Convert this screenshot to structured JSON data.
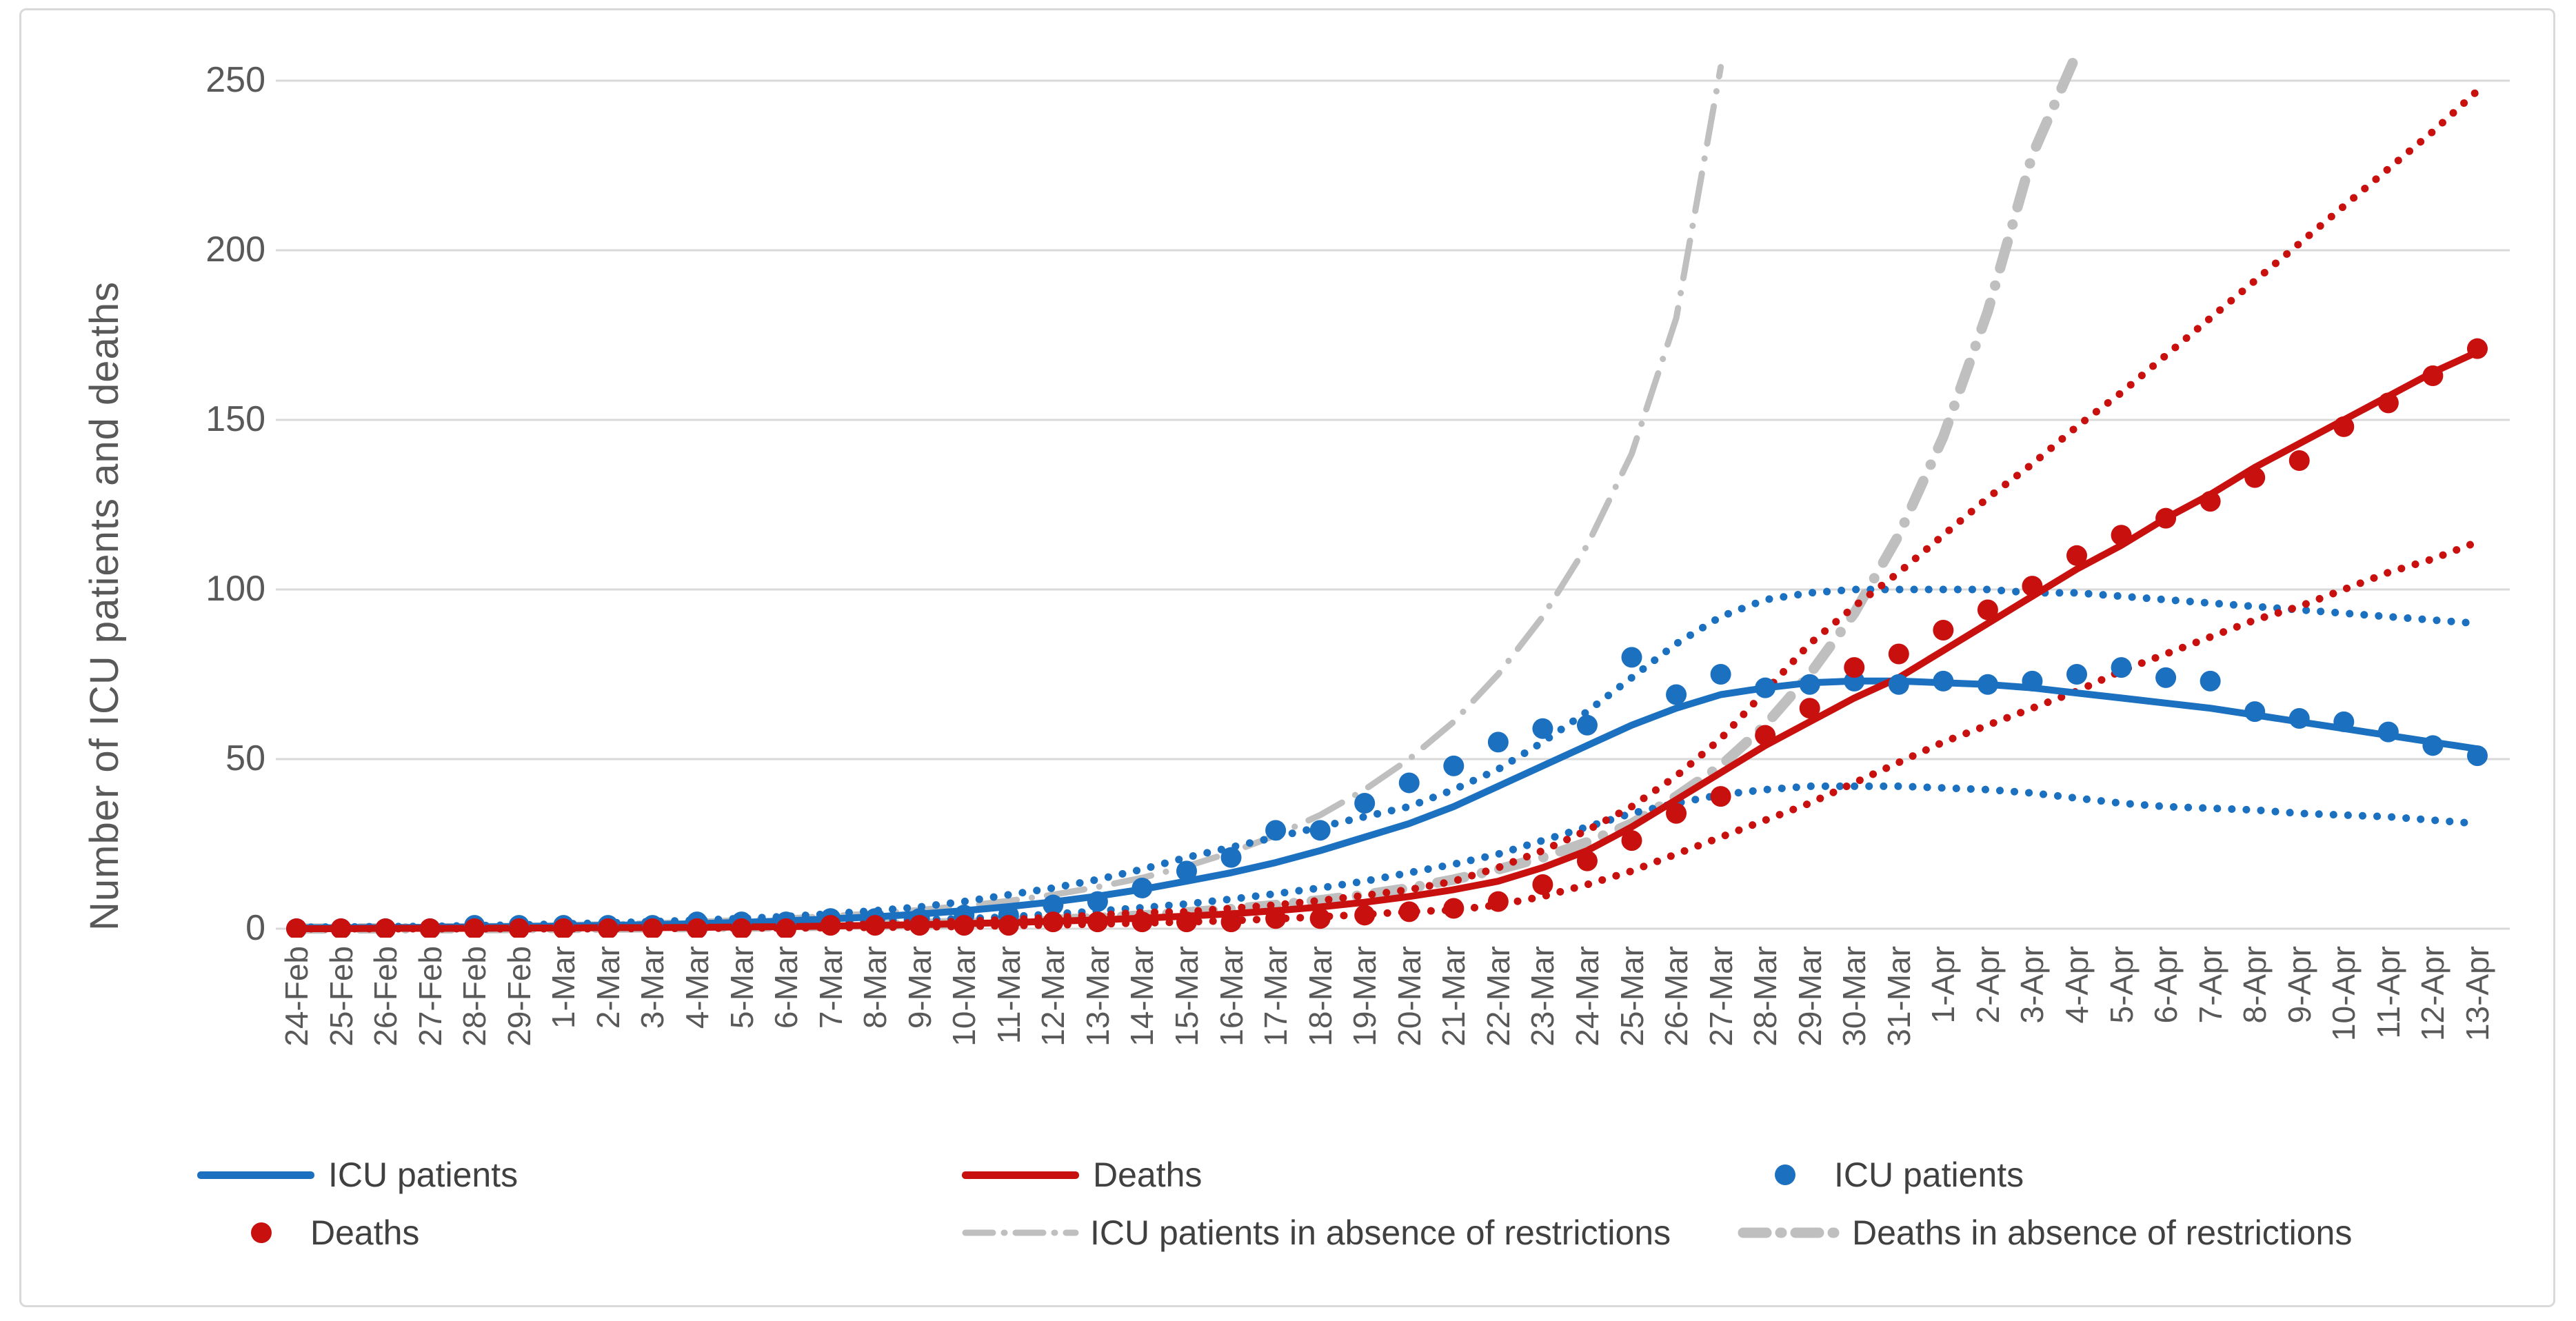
{
  "palette": {
    "blue": "#1B70C0",
    "red": "#C8100E",
    "gray": "#BFBFBF",
    "gridline": "#D9D9D9",
    "axis_text": "#595959",
    "legend_text": "#404040",
    "background": "#FFFFFF"
  },
  "legend": {
    "items": [
      {
        "label": "ICU patients",
        "swatch": "line-blue"
      },
      {
        "label": "Deaths",
        "swatch": "line-red"
      },
      {
        "label": "ICU patients",
        "swatch": "dot-blue"
      },
      {
        "label": "Deaths",
        "swatch": "dot-red"
      },
      {
        "label": "ICU patients in absence of restrictions",
        "swatch": "dashdot-thin"
      },
      {
        "label": "Deaths in absence of restrictions",
        "swatch": "dashdot-thick"
      }
    ]
  },
  "chart_data": {
    "type": "line",
    "title": "",
    "xlabel": "",
    "ylabel": "Number of ICU patients and deaths",
    "ylim": [
      0,
      250
    ],
    "y_ticks": [
      0,
      50,
      100,
      150,
      200,
      250
    ],
    "grid": "horizontal",
    "legend_position": "bottom",
    "x": [
      "24-Feb",
      "25-Feb",
      "26-Feb",
      "27-Feb",
      "28-Feb",
      "29-Feb",
      "1-Mar",
      "2-Mar",
      "3-Mar",
      "4-Mar",
      "5-Mar",
      "6-Mar",
      "7-Mar",
      "8-Mar",
      "9-Mar",
      "10-Mar",
      "11-Mar",
      "12-Mar",
      "13-Mar",
      "14-Mar",
      "15-Mar",
      "16-Mar",
      "17-Mar",
      "18-Mar",
      "19-Mar",
      "20-Mar",
      "21-Mar",
      "22-Mar",
      "23-Mar",
      "24-Mar",
      "25-Mar",
      "26-Mar",
      "27-Mar",
      "28-Mar",
      "29-Mar",
      "30-Mar",
      "31-Mar",
      "1-Apr",
      "2-Apr",
      "3-Apr",
      "4-Apr",
      "5-Apr",
      "6-Apr",
      "7-Apr",
      "8-Apr",
      "9-Apr",
      "10-Apr",
      "11-Apr",
      "12-Apr",
      "13-Apr"
    ],
    "series": [
      {
        "name": "Deaths in absence of restrictions",
        "type": "line",
        "style": "dashdot-thick",
        "color": "gray",
        "values": [
          0.05,
          0.07,
          0.1,
          0.12,
          0.15,
          0.2,
          0.25,
          0.3,
          0.4,
          0.5,
          0.6,
          0.75,
          0.9,
          1.1,
          1.4,
          1.7,
          2.1,
          2.6,
          3.2,
          3.9,
          4.8,
          5.8,
          7,
          8.4,
          10,
          12,
          14.5,
          17.5,
          21,
          25.5,
          31,
          39,
          48,
          60,
          75,
          93,
          116,
          145,
          182,
          228,
          258,
          null,
          null,
          null,
          null,
          null,
          null,
          null,
          null,
          null
        ]
      },
      {
        "name": "ICU patients in absence of restrictions",
        "type": "line",
        "style": "dashdot",
        "color": "gray",
        "values": [
          0.3,
          0.35,
          0.45,
          0.55,
          0.7,
          0.85,
          1.1,
          1.3,
          1.6,
          2,
          2.5,
          3,
          3.7,
          4.5,
          5.5,
          6.7,
          8.2,
          10,
          12.3,
          15,
          18.4,
          22.5,
          27.5,
          33.5,
          41,
          50,
          61,
          75,
          92,
          113,
          140,
          180,
          254,
          null,
          null,
          null,
          null,
          null,
          null,
          null,
          null,
          null,
          null,
          null,
          null,
          null,
          null,
          null,
          null,
          null
        ]
      },
      {
        "name": "ICU patients 95% CI upper bound",
        "type": "line",
        "style": "dotted",
        "color": "blue",
        "values": [
          0.4,
          0.5,
          0.6,
          0.7,
          0.9,
          1.1,
          1.4,
          1.7,
          2.1,
          2.5,
          3,
          3.6,
          4.4,
          5.3,
          6.4,
          8,
          10,
          12,
          14.5,
          17.5,
          21,
          24,
          27,
          30,
          33,
          36,
          41,
          47,
          55,
          64,
          74,
          84,
          92,
          97,
          99,
          100,
          100,
          100,
          100,
          99,
          99,
          98,
          97,
          96,
          95,
          94,
          93,
          92,
          91,
          90
        ]
      },
      {
        "name": "ICU patients 95% CI lower bound",
        "type": "line",
        "style": "dotted",
        "color": "blue",
        "values": [
          0.1,
          0.15,
          0.2,
          0.25,
          0.3,
          0.4,
          0.5,
          0.6,
          0.8,
          1,
          1.2,
          1.5,
          1.8,
          2.2,
          2.7,
          2.9,
          3.5,
          4.3,
          5.2,
          6.2,
          7.3,
          8.7,
          10.3,
          12,
          14,
          16.5,
          19,
          22,
          26,
          30,
          34,
          37,
          39.5,
          41,
          42,
          42,
          42,
          41.5,
          41,
          40,
          38.5,
          37,
          36,
          35.5,
          35,
          34,
          33.5,
          33,
          32,
          31
        ]
      },
      {
        "name": "Deaths 95% CI upper bound",
        "type": "line",
        "style": "dotted",
        "color": "red",
        "values": [
          0,
          0.1,
          0.1,
          0.2,
          0.2,
          0.3,
          0.3,
          0.4,
          0.5,
          0.6,
          0.8,
          1,
          1.2,
          1.5,
          1.8,
          2.2,
          2.7,
          3.3,
          4,
          4.8,
          5,
          6,
          7,
          8.3,
          9.8,
          11.5,
          14,
          18,
          23,
          29,
          36,
          45,
          56,
          70,
          84,
          95,
          105,
          116,
          127,
          137,
          148,
          158,
          169,
          180,
          191,
          202,
          213,
          224,
          235,
          247
        ]
      },
      {
        "name": "Deaths 95% CI lower bound",
        "type": "line",
        "style": "dotted",
        "color": "red",
        "values": [
          0,
          0,
          0,
          0,
          0,
          0,
          0,
          0,
          0.1,
          0.1,
          0.2,
          0.2,
          0.3,
          0.4,
          0.5,
          0.7,
          0.9,
          1.1,
          1.4,
          1.7,
          2,
          2.4,
          2.9,
          3.5,
          4.2,
          5,
          5.5,
          7,
          9.5,
          13,
          17,
          22,
          27,
          32,
          37,
          43,
          49,
          55,
          60,
          65,
          70,
          76,
          81,
          86,
          91,
          95,
          100,
          105,
          109,
          114
        ]
      },
      {
        "name": "ICU patients (model)",
        "legend_label": "ICU patients",
        "type": "line",
        "style": "solid",
        "color": "blue",
        "values": [
          0.2,
          0.3,
          0.3,
          0.4,
          0.5,
          0.6,
          0.8,
          1,
          1.2,
          1.5,
          1.9,
          2.3,
          2.9,
          3.5,
          4.3,
          5.3,
          6.5,
          7.9,
          9.6,
          11.6,
          14,
          16.5,
          19.5,
          23,
          27,
          31,
          36,
          42,
          48,
          54,
          60,
          65,
          69,
          71,
          72.5,
          73,
          73,
          72.5,
          72,
          71,
          69.5,
          68,
          66.5,
          65,
          63,
          61,
          59,
          57,
          55,
          53
        ]
      },
      {
        "name": "Deaths (model)",
        "legend_label": "Deaths",
        "type": "line",
        "style": "solid",
        "color": "red",
        "values": [
          0,
          0,
          0.1,
          0.1,
          0.1,
          0.2,
          0.2,
          0.3,
          0.3,
          0.4,
          0.5,
          0.6,
          0.8,
          1,
          1.2,
          1.5,
          1.8,
          2.2,
          2.6,
          3.1,
          3.7,
          4.4,
          5.3,
          6.4,
          7.8,
          9.5,
          11.5,
          14,
          18,
          23,
          30,
          38,
          46,
          54,
          61,
          68,
          74,
          82,
          90,
          98,
          106,
          113,
          121,
          128,
          136,
          143,
          150,
          157,
          164,
          170
        ]
      },
      {
        "name": "ICU patients (observed)",
        "legend_label": "ICU patients",
        "type": "scatter",
        "color": "blue",
        "values": [
          0,
          0,
          0,
          0,
          1,
          1,
          1,
          1,
          1,
          2,
          2,
          2,
          3,
          3,
          3,
          4,
          4,
          7,
          8,
          12,
          17,
          21,
          29,
          29,
          37,
          43,
          48,
          55,
          59,
          60,
          80,
          69,
          75,
          71,
          72,
          73,
          72,
          73,
          72,
          73,
          75,
          77,
          74,
          73,
          64,
          62,
          61,
          58,
          54,
          51
        ]
      },
      {
        "name": "Deaths (observed)",
        "legend_label": "Deaths",
        "type": "scatter",
        "color": "red",
        "values": [
          0,
          0,
          0,
          0,
          0,
          0,
          0,
          0,
          0,
          0,
          0,
          0,
          1,
          1,
          1,
          1,
          1,
          2,
          2,
          2,
          2,
          2,
          3,
          3,
          4,
          5,
          6,
          8,
          13,
          20,
          26,
          34,
          39,
          57,
          65,
          77,
          81,
          88,
          94,
          101,
          110,
          116,
          121,
          126,
          133,
          138,
          148,
          155,
          163,
          171
        ]
      }
    ]
  }
}
